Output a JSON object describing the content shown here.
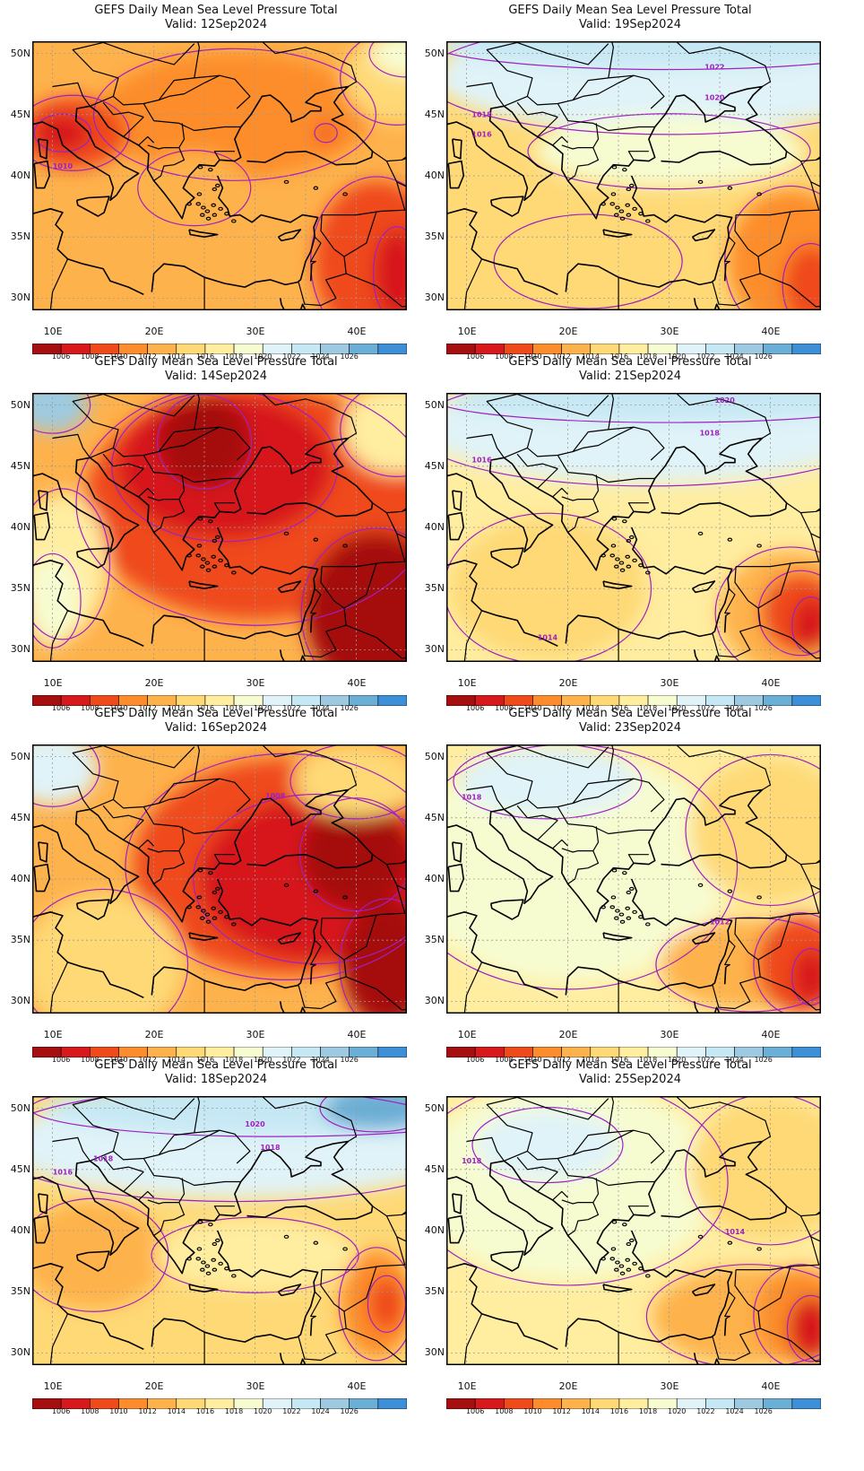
{
  "colorbar": {
    "levels": [
      "1006",
      "1008",
      "1010",
      "1012",
      "1014",
      "1016",
      "1018",
      "1020",
      "1022",
      "1024",
      "1026"
    ],
    "colors": [
      "#a50f0f",
      "#d7191c",
      "#ef4a1a",
      "#fd8d2c",
      "#feb24c",
      "#fed976",
      "#ffeda0",
      "#f7fcd0",
      "#e0f3f8",
      "#c6e8f4",
      "#9ecae1",
      "#6baed6",
      "#3d8fd8",
      "#2171b5"
    ]
  },
  "axes": {
    "lat_labels": [
      "50N",
      "45N",
      "40N",
      "35N",
      "30N"
    ],
    "lon_labels": [
      "10E",
      "20E",
      "30E",
      "40E"
    ],
    "lat_range": [
      29,
      51
    ],
    "lon_range": [
      8,
      45
    ]
  },
  "panels": [
    {
      "title": "GEFS Daily Mean Sea Level Pressure Total",
      "valid": "Valid: 12Sep2024",
      "contour_labels": [
        {
          "text": "1010",
          "lon": 11,
          "lat": 40.6
        }
      ],
      "bg": 4,
      "blobs": [
        {
          "lon": 28,
          "lat": 45,
          "r": [
            150,
            70
          ],
          "c": 3
        },
        {
          "lon": 12,
          "lat": 43.5,
          "r": [
            60,
            40
          ],
          "c": 2
        },
        {
          "lon": 11,
          "lat": 43.5,
          "r": [
            30,
            20
          ],
          "c": 1
        },
        {
          "lon": 42,
          "lat": 33,
          "r": [
            70,
            90
          ],
          "c": 2
        },
        {
          "lon": 44,
          "lat": 32,
          "r": [
            25,
            50
          ],
          "c": 1
        },
        {
          "lon": 37,
          "lat": 43.5,
          "r": [
            12,
            10
          ],
          "c": 2
        },
        {
          "lon": 24,
          "lat": 39,
          "r": [
            60,
            40
          ],
          "c": 4
        },
        {
          "lon": 44,
          "lat": 48,
          "r": [
            60,
            50
          ],
          "c": 5
        },
        {
          "lon": 45,
          "lat": 50,
          "r": [
            40,
            25
          ],
          "c": 7
        }
      ]
    },
    {
      "title": "GEFS Daily Mean Sea Level Pressure Total",
      "valid": "Valid: 19Sep2024",
      "contour_labels": [
        {
          "text": "1022",
          "lon": 34.5,
          "lat": 48.7
        },
        {
          "text": "1020",
          "lon": 34.5,
          "lat": 46.2
        },
        {
          "text": "1018",
          "lon": 11.5,
          "lat": 44.8
        },
        {
          "text": "1016",
          "lon": 11.5,
          "lat": 43.2
        }
      ],
      "bg": 5,
      "blobs": [
        {
          "lon": 30,
          "lat": 48,
          "r": [
            260,
            60
          ],
          "c": 8
        },
        {
          "lon": 30,
          "lat": 51,
          "r": [
            260,
            30
          ],
          "c": 9
        },
        {
          "lon": 30,
          "lat": 42,
          "r": [
            150,
            40
          ],
          "c": 7
        },
        {
          "lon": 42,
          "lat": 33,
          "r": [
            70,
            80
          ],
          "c": 3
        },
        {
          "lon": 44,
          "lat": 31,
          "r": [
            30,
            45
          ],
          "c": 2
        },
        {
          "lon": 22,
          "lat": 33,
          "r": [
            100,
            50
          ],
          "c": 5
        }
      ]
    },
    {
      "title": "GEFS Daily Mean Sea Level Pressure Total",
      "valid": "Valid: 14Sep2024",
      "contour_labels": [],
      "bg": 4,
      "blobs": [
        {
          "lon": 30,
          "lat": 42,
          "r": [
            190,
            130
          ],
          "c": 2
        },
        {
          "lon": 27,
          "lat": 45,
          "r": [
            120,
            80
          ],
          "c": 1
        },
        {
          "lon": 25,
          "lat": 47,
          "r": [
            50,
            50
          ],
          "c": 0
        },
        {
          "lon": 42,
          "lat": 33,
          "r": [
            80,
            90
          ],
          "c": 0
        },
        {
          "lon": 11,
          "lat": 37,
          "r": [
            50,
            80
          ],
          "c": 6
        },
        {
          "lon": 10,
          "lat": 34,
          "r": [
            30,
            50
          ],
          "c": 7
        },
        {
          "lon": 10,
          "lat": 50,
          "r": [
            40,
            30
          ],
          "c": 10
        },
        {
          "lon": 44,
          "lat": 48,
          "r": [
            60,
            50
          ],
          "c": 6
        }
      ]
    },
    {
      "title": "GEFS Daily Mean Sea Level Pressure Total",
      "valid": "Valid: 21Sep2024",
      "contour_labels": [
        {
          "text": "1020",
          "lon": 35.5,
          "lat": 50.2
        },
        {
          "text": "1018",
          "lon": 34,
          "lat": 47.5
        },
        {
          "text": "1016",
          "lon": 11.5,
          "lat": 45.3
        },
        {
          "text": "1014",
          "lon": 18,
          "lat": 30.8
        }
      ],
      "bg": 6,
      "blobs": [
        {
          "lon": 28,
          "lat": 48,
          "r": [
            250,
            60
          ],
          "c": 8
        },
        {
          "lon": 30,
          "lat": 50.5,
          "r": [
            250,
            25
          ],
          "c": 9
        },
        {
          "lon": 42,
          "lat": 33,
          "r": [
            80,
            70
          ],
          "c": 4
        },
        {
          "lon": 43,
          "lat": 33,
          "r": [
            45,
            45
          ],
          "c": 2
        },
        {
          "lon": 44,
          "lat": 32,
          "r": [
            20,
            30
          ],
          "c": 1
        },
        {
          "lon": 18,
          "lat": 35,
          "r": [
            110,
            80
          ],
          "c": 5
        }
      ]
    },
    {
      "title": "GEFS Daily Mean Sea Level Pressure Total",
      "valid": "Valid: 16Sep2024",
      "contour_labels": [
        {
          "text": "1008",
          "lon": 32,
          "lat": 46.6
        }
      ],
      "bg": 4,
      "blobs": [
        {
          "lon": 33,
          "lat": 41,
          "r": [
            170,
            120
          ],
          "c": 2
        },
        {
          "lon": 36,
          "lat": 40,
          "r": [
            130,
            90
          ],
          "c": 1
        },
        {
          "lon": 40,
          "lat": 42,
          "r": [
            60,
            60
          ],
          "c": 0
        },
        {
          "lon": 43,
          "lat": 33,
          "r": [
            50,
            70
          ],
          "c": 0
        },
        {
          "lon": 10,
          "lat": 49,
          "r": [
            50,
            40
          ],
          "c": 8
        },
        {
          "lon": 15,
          "lat": 33,
          "r": [
            90,
            80
          ],
          "c": 5
        },
        {
          "lon": 40,
          "lat": 48,
          "r": [
            70,
            40
          ],
          "c": 5
        }
      ]
    },
    {
      "title": "GEFS Daily Mean Sea Level Pressure Total",
      "valid": "Valid: 23Sep2024",
      "contour_labels": [
        {
          "text": "1018",
          "lon": 10.5,
          "lat": 46.5
        },
        {
          "text": "1012",
          "lon": 35,
          "lat": 36.3
        }
      ],
      "bg": 6,
      "blobs": [
        {
          "lon": 20,
          "lat": 41,
          "r": [
            180,
            130
          ],
          "c": 7
        },
        {
          "lon": 18,
          "lat": 48,
          "r": [
            100,
            40
          ],
          "c": 8
        },
        {
          "lon": 40,
          "lat": 44,
          "r": [
            90,
            80
          ],
          "c": 5
        },
        {
          "lon": 38,
          "lat": 33,
          "r": [
            100,
            50
          ],
          "c": 4
        },
        {
          "lon": 43,
          "lat": 33,
          "r": [
            50,
            55
          ],
          "c": 2
        },
        {
          "lon": 44,
          "lat": 32,
          "r": [
            20,
            30
          ],
          "c": 1
        }
      ]
    },
    {
      "title": "GEFS Daily Mean Sea Level Pressure Total",
      "valid": "Valid: 18Sep2024",
      "contour_labels": [
        {
          "text": "1020",
          "lon": 30,
          "lat": 48.5
        },
        {
          "text": "1018",
          "lon": 31.5,
          "lat": 46.6
        },
        {
          "text": "1018",
          "lon": 15,
          "lat": 45.7
        },
        {
          "text": "1016",
          "lon": 11,
          "lat": 44.6
        }
      ],
      "bg": 5,
      "blobs": [
        {
          "lon": 28,
          "lat": 47,
          "r": [
            260,
            60
          ],
          "c": 8
        },
        {
          "lon": 32,
          "lat": 50,
          "r": [
            260,
            30
          ],
          "c": 9
        },
        {
          "lon": 42,
          "lat": 50,
          "r": [
            60,
            25
          ],
          "c": 11
        },
        {
          "lon": 14,
          "lat": 38,
          "r": [
            80,
            60
          ],
          "c": 4
        },
        {
          "lon": 42,
          "lat": 34,
          "r": [
            40,
            60
          ],
          "c": 3
        },
        {
          "lon": 43,
          "lat": 34,
          "r": [
            20,
            30
          ],
          "c": 2
        },
        {
          "lon": 30,
          "lat": 38,
          "r": [
            110,
            40
          ],
          "c": 6
        }
      ]
    },
    {
      "title": "GEFS Daily Mean Sea Level Pressure Total",
      "valid": "Valid: 25Sep2024",
      "contour_labels": [
        {
          "text": "1018",
          "lon": 10.5,
          "lat": 45.5
        },
        {
          "text": "1014",
          "lon": 36.5,
          "lat": 39.7
        }
      ],
      "bg": 6,
      "blobs": [
        {
          "lon": 20,
          "lat": 44,
          "r": [
            170,
            110
          ],
          "c": 7
        },
        {
          "lon": 18,
          "lat": 47,
          "r": [
            80,
            40
          ],
          "c": 8
        },
        {
          "lon": 40,
          "lat": 45,
          "r": [
            90,
            80
          ],
          "c": 5
        },
        {
          "lon": 38,
          "lat": 33,
          "r": [
            110,
            55
          ],
          "c": 4
        },
        {
          "lon": 43,
          "lat": 33,
          "r": [
            50,
            55
          ],
          "c": 3
        },
        {
          "lon": 44,
          "lat": 32,
          "r": [
            25,
            35
          ],
          "c": 1
        }
      ]
    }
  ]
}
